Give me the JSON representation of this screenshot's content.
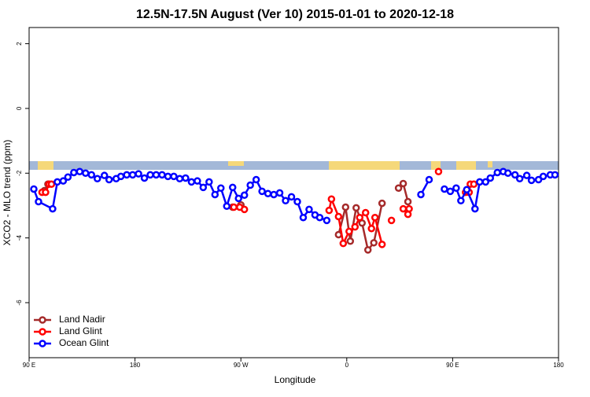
{
  "chart_data": {
    "type": "line",
    "title": "12.5N-17.5N August (Ver 10)   2015-01-01 to 2020-12-18",
    "x_label": "Longitude",
    "y_label": "XCO2 - MLO trend (ppm)",
    "xlim": [
      90,
      540
    ],
    "ylim": [
      -7.7,
      2.5
    ],
    "xticks": [
      {
        "value": 90,
        "label": "90 E"
      },
      180,
      {
        "value": 270,
        "label": "90 W"
      },
      {
        "value": 360,
        "label": "0"
      },
      {
        "value": 450,
        "label": "90 E"
      },
      {
        "value": 540,
        "label": "180"
      }
    ],
    "yticks": [
      -6,
      -4,
      -2,
      0,
      2
    ],
    "legend": "bottom-left",
    "series": [
      {
        "name": "Land Nadir",
        "color": "#a52a2a",
        "x": [
          103,
          106,
          null,
          263,
          270,
          null,
          353,
          359,
          363,
          368,
          373,
          378,
          383,
          390,
          null,
          404,
          408,
          412
        ],
        "values": [
          -2.54,
          -2.34,
          null,
          -3.05,
          -2.98,
          null,
          -3.9,
          -3.05,
          -4.1,
          -3.07,
          -3.54,
          -4.37,
          -4.15,
          -2.93,
          null,
          -2.46,
          -2.32,
          -2.88
        ]
      },
      {
        "name": "Land Glint",
        "color": "#ff0000",
        "x": [
          101,
          104,
          107,
          109,
          null,
          264,
          269,
          273,
          null,
          345,
          347,
          353,
          357,
          362,
          367,
          371,
          376,
          381,
          384,
          390,
          null,
          398,
          null,
          408,
          412,
          413,
          null,
          438,
          null,
          461,
          464,
          465,
          468
        ],
        "values": [
          -2.59,
          -2.59,
          -2.34,
          -2.34,
          null,
          -3.05,
          -3.05,
          -3.12,
          null,
          -3.15,
          -2.8,
          -3.34,
          -4.17,
          -3.8,
          -3.66,
          -3.37,
          -3.22,
          -3.71,
          -3.37,
          -4.2,
          null,
          -3.46,
          null,
          -3.1,
          -3.27,
          -3.1,
          null,
          -1.95,
          null,
          -2.59,
          -2.59,
          -2.34,
          -2.34
        ]
      },
      {
        "name": "Ocean Glint",
        "color": "#0000ff",
        "x": [
          94,
          98,
          110,
          114,
          119,
          123,
          128,
          133,
          138,
          143,
          148,
          154,
          158,
          164,
          168,
          173,
          178,
          183,
          188,
          193,
          198,
          203,
          208,
          213,
          218,
          223,
          228,
          233,
          238,
          243,
          248,
          253,
          258,
          263,
          268,
          273,
          278,
          283,
          288,
          293,
          298,
          303,
          308,
          313,
          318,
          323,
          328,
          333,
          337,
          343,
          null,
          423,
          430,
          null,
          443,
          448,
          453,
          457,
          462,
          469,
          473,
          478,
          482,
          488,
          493,
          497,
          503,
          507,
          513,
          517,
          523,
          527,
          533,
          537
        ],
        "values": [
          -2.49,
          -2.88,
          -3.1,
          -2.27,
          -2.24,
          -2.12,
          -1.98,
          -1.95,
          -2.0,
          -2.05,
          -2.17,
          -2.07,
          -2.2,
          -2.17,
          -2.1,
          -2.05,
          -2.05,
          -2.02,
          -2.15,
          -2.05,
          -2.05,
          -2.05,
          -2.1,
          -2.1,
          -2.17,
          -2.15,
          -2.27,
          -2.24,
          -2.44,
          -2.27,
          -2.66,
          -2.46,
          -3.02,
          -2.44,
          -2.78,
          -2.68,
          -2.37,
          -2.2,
          -2.56,
          -2.63,
          -2.66,
          -2.61,
          -2.85,
          -2.73,
          -2.88,
          -3.37,
          -3.12,
          -3.29,
          -3.37,
          -3.46,
          null,
          -2.66,
          -2.2,
          null,
          -2.49,
          -2.56,
          -2.46,
          -2.85,
          -2.51,
          -3.1,
          -2.27,
          -2.27,
          -2.15,
          -1.98,
          -1.95,
          -2.0,
          -2.05,
          -2.17,
          -2.07,
          -2.22,
          -2.2,
          -2.1,
          -2.05,
          -2.05
        ]
      }
    ]
  }
}
